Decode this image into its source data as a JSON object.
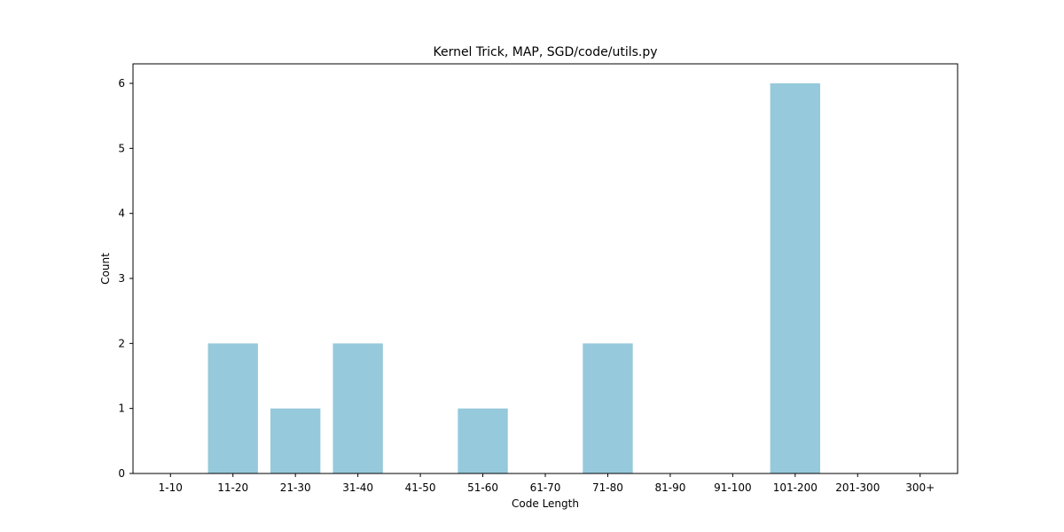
{
  "chart_data": {
    "type": "bar",
    "title": "Kernel Trick, MAP, SGD/code/utils.py",
    "xlabel": "Code Length",
    "ylabel": "Count",
    "categories": [
      "1-10",
      "11-20",
      "21-30",
      "31-40",
      "41-50",
      "51-60",
      "61-70",
      "71-80",
      "81-90",
      "91-100",
      "101-200",
      "201-300",
      "300+"
    ],
    "values": [
      0,
      2,
      1,
      2,
      0,
      1,
      0,
      2,
      0,
      0,
      6,
      0,
      0
    ],
    "ylim": [
      0,
      6.3
    ],
    "yticks": [
      0,
      1,
      2,
      3,
      4,
      5,
      6
    ],
    "grid": false,
    "bar_color": "#96c9dc"
  }
}
